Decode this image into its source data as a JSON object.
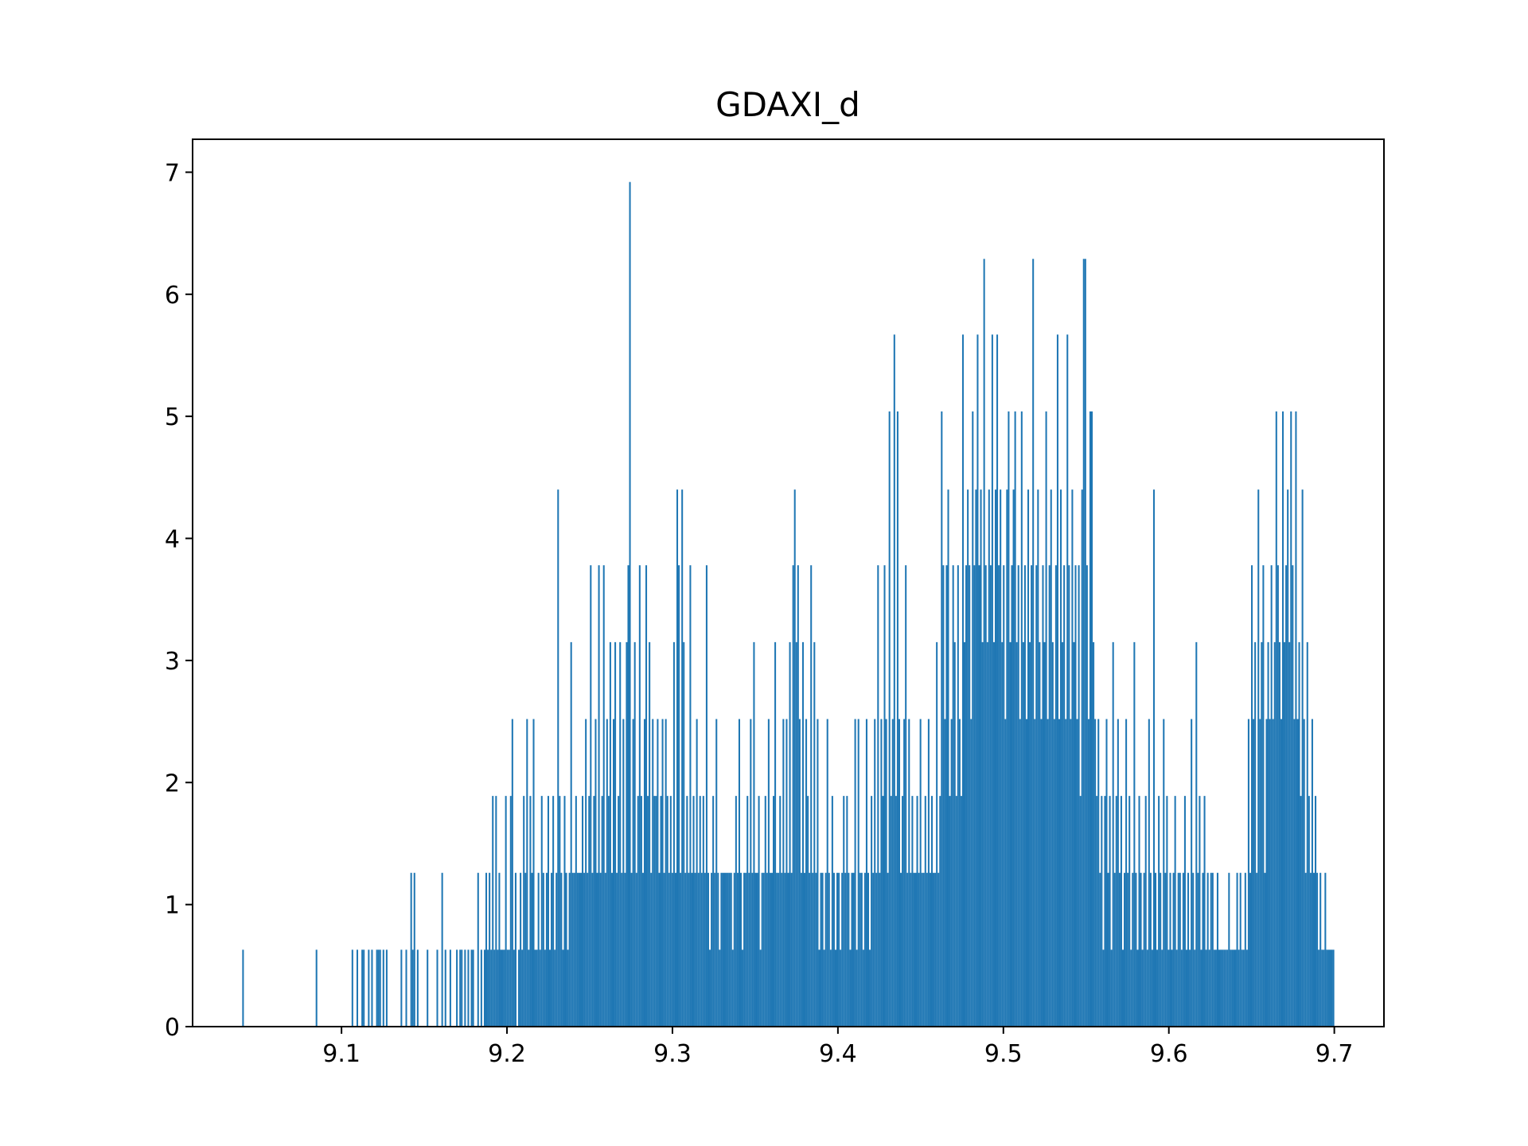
{
  "chart_data": {
    "type": "bar",
    "title": "GDAXI_d",
    "xlabel": "",
    "ylabel": "",
    "xlim": [
      9.01,
      9.73
    ],
    "ylim": [
      0,
      7.27
    ],
    "grid": false,
    "bar_color": "#1f77b4",
    "x_ticks": [
      9.1,
      9.2,
      9.3,
      9.4,
      9.5,
      9.6,
      9.7
    ],
    "x_tick_labels": [
      "9.1",
      "9.2",
      "9.3",
      "9.4",
      "9.5",
      "9.6",
      "9.7"
    ],
    "y_ticks": [
      0,
      1,
      2,
      3,
      4,
      5,
      6,
      7
    ],
    "y_tick_labels": [
      "0",
      "1",
      "2",
      "3",
      "4",
      "5",
      "6",
      "7"
    ],
    "bin_start": 9.04,
    "bin_end": 9.7,
    "bar_heights": [
      0.63,
      0,
      0,
      0,
      0,
      0,
      0,
      0,
      0,
      0,
      0,
      0,
      0,
      0,
      0,
      0,
      0,
      0,
      0,
      0,
      0,
      0,
      0,
      0,
      0,
      0,
      0,
      0,
      0,
      0,
      0,
      0,
      0,
      0,
      0,
      0,
      0,
      0,
      0,
      0,
      0,
      0,
      0,
      0,
      0,
      0.63,
      0,
      0,
      0,
      0,
      0,
      0,
      0,
      0,
      0,
      0,
      0,
      0,
      0,
      0,
      0,
      0,
      0,
      0,
      0,
      0,
      0,
      0.63,
      0,
      0,
      0.63,
      0,
      0,
      0.63,
      0.63,
      0,
      0,
      0.63,
      0,
      0.63,
      0,
      0,
      0.63,
      0.63,
      0.63,
      0,
      0.63,
      0,
      0.63,
      0,
      0,
      0,
      0,
      0,
      0,
      0,
      0,
      0.63,
      0,
      0,
      0.63,
      0,
      0,
      1.26,
      0.63,
      1.26,
      0,
      0.63,
      0,
      0,
      0,
      0,
      0,
      0.63,
      0,
      0,
      0,
      0,
      0,
      0.63,
      0,
      0,
      1.26,
      0,
      0.63,
      0,
      0,
      0.63,
      0,
      0,
      0,
      0.63,
      0,
      0.63,
      0.63,
      0,
      0.63,
      0,
      0.63,
      0,
      0.63,
      0.63,
      0,
      0,
      1.26,
      0,
      0.63,
      0,
      0.63,
      1.26,
      0.63,
      1.26,
      0.63,
      1.89,
      0.63,
      1.89,
      0.63,
      1.26,
      0.63,
      0.63,
      0.63,
      1.89,
      0.63,
      0.63,
      1.89,
      2.52,
      0.63,
      1.26,
      0,
      0.63,
      1.26,
      0.63,
      1.89,
      1.26,
      2.52,
      0.63,
      1.89,
      1.26,
      2.52,
      0.63,
      0.63,
      1.26,
      0.63,
      1.89,
      1.26,
      0.63,
      1.26,
      1.89,
      0.63,
      1.26,
      1.89,
      0.63,
      1.26,
      4.4,
      1.89,
      1.26,
      0.63,
      1.89,
      1.26,
      0.63,
      1.26,
      3.15,
      1.26,
      1.26,
      1.89,
      1.26,
      1.26,
      1.26,
      1.89,
      1.26,
      2.52,
      1.26,
      1.89,
      3.78,
      1.26,
      1.89,
      2.52,
      1.26,
      3.78,
      1.26,
      1.89,
      3.78,
      1.26,
      2.52,
      1.89,
      3.15,
      1.26,
      2.52,
      3.15,
      1.26,
      1.89,
      3.15,
      1.26,
      2.52,
      1.26,
      3.15,
      3.78,
      6.92,
      1.26,
      2.52,
      3.15,
      1.26,
      1.89,
      3.78,
      1.89,
      1.26,
      2.52,
      3.78,
      1.89,
      3.15,
      1.26,
      2.52,
      1.89,
      1.89,
      2.52,
      1.26,
      1.89,
      2.52,
      1.26,
      2.52,
      1.89,
      1.26,
      1.89,
      1.26,
      3.15,
      1.26,
      4.4,
      3.78,
      1.26,
      4.4,
      3.15,
      1.26,
      1.89,
      1.26,
      3.78,
      1.26,
      1.89,
      1.26,
      2.52,
      1.26,
      1.89,
      1.26,
      1.89,
      1.26,
      3.78,
      1.26,
      0.63,
      1.26,
      1.89,
      1.26,
      2.52,
      1.26,
      0.63,
      1.26,
      1.26,
      1.26,
      1.26,
      1.26,
      1.26,
      1.26,
      0.63,
      1.26,
      1.89,
      1.26,
      2.52,
      1.26,
      0.63,
      1.26,
      1.26,
      1.89,
      1.26,
      2.52,
      1.26,
      3.15,
      1.26,
      1.26,
      1.89,
      0.63,
      1.26,
      1.26,
      1.89,
      1.26,
      2.52,
      1.26,
      1.26,
      1.89,
      3.15,
      1.26,
      1.26,
      1.89,
      1.26,
      2.52,
      1.26,
      2.52,
      1.26,
      3.15,
      1.26,
      3.78,
      4.4,
      3.15,
      3.78,
      2.52,
      1.26,
      3.15,
      1.26,
      2.52,
      1.89,
      1.26,
      3.78,
      1.26,
      3.15,
      1.26,
      2.52,
      0.63,
      1.26,
      1.26,
      0.63,
      1.26,
      2.52,
      1.26,
      0.63,
      1.89,
      1.26,
      0.63,
      1.26,
      1.26,
      0.63,
      1.26,
      1.89,
      1.26,
      1.89,
      1.26,
      0.63,
      1.26,
      1.26,
      2.52,
      0.63,
      2.52,
      1.26,
      1.26,
      0.63,
      1.26,
      2.52,
      1.26,
      0.63,
      1.89,
      1.26,
      2.52,
      1.26,
      3.78,
      1.26,
      2.52,
      1.89,
      3.78,
      2.52,
      1.26,
      5.04,
      1.89,
      2.52,
      5.67,
      1.89,
      5.04,
      2.52,
      1.26,
      1.89,
      2.52,
      3.78,
      1.26,
      2.52,
      1.26,
      1.89,
      1.26,
      1.26,
      1.89,
      1.26,
      2.52,
      1.26,
      1.26,
      1.89,
      1.26,
      2.52,
      1.26,
      1.89,
      1.26,
      1.26,
      3.15,
      1.26,
      1.89,
      5.04,
      3.78,
      2.52,
      3.78,
      4.4,
      1.89,
      2.52,
      3.78,
      3.15,
      1.89,
      3.78,
      2.52,
      1.89,
      5.67,
      3.15,
      3.78,
      4.4,
      3.78,
      2.52,
      5.04,
      3.78,
      4.4,
      5.67,
      3.78,
      4.4,
      3.15,
      6.29,
      3.78,
      3.15,
      4.4,
      3.78,
      5.67,
      3.15,
      4.4,
      5.67,
      3.78,
      4.4,
      3.15,
      3.78,
      2.52,
      4.4,
      5.04,
      3.15,
      3.78,
      4.4,
      5.04,
      3.15,
      3.78,
      2.52,
      5.04,
      3.15,
      3.78,
      2.52,
      4.4,
      3.15,
      3.78,
      6.29,
      2.52,
      3.78,
      4.4,
      3.15,
      2.52,
      3.78,
      3.15,
      5.04,
      2.52,
      3.78,
      4.4,
      3.15,
      2.52,
      3.78,
      5.67,
      2.52,
      4.4,
      3.15,
      3.78,
      2.52,
      5.67,
      3.78,
      2.52,
      4.4,
      3.15,
      3.78,
      2.52,
      3.78,
      1.89,
      4.4,
      6.29,
      6.29,
      3.78,
      2.52,
      5.04,
      5.04,
      3.15,
      2.52,
      1.89,
      2.52,
      1.26,
      1.89,
      0.63,
      1.89,
      2.52,
      1.26,
      1.89,
      0.63,
      3.15,
      1.26,
      1.89,
      2.52,
      1.26,
      1.89,
      0.63,
      1.26,
      2.52,
      1.26,
      1.89,
      0.63,
      1.26,
      3.15,
      1.26,
      0.63,
      1.89,
      1.26,
      0.63,
      1.26,
      1.89,
      0.63,
      2.52,
      1.26,
      0.63,
      4.4,
      1.26,
      0.63,
      1.89,
      1.26,
      0.63,
      2.52,
      1.26,
      1.89,
      0.63,
      1.26,
      0.63,
      1.26,
      1.89,
      0.63,
      1.26,
      1.26,
      0.63,
      1.26,
      1.89,
      0.63,
      1.26,
      0.63,
      2.52,
      1.26,
      0.63,
      3.15,
      1.26,
      1.89,
      0.63,
      1.26,
      1.89,
      0.63,
      1.26,
      0.63,
      1.26,
      1.26,
      0.63,
      0.63,
      1.26,
      0.63,
      0.63,
      0.63,
      0.63,
      0.63,
      0.63,
      1.26,
      0.63,
      0.63,
      0.63,
      0.63,
      1.26,
      0.63,
      1.26,
      0.63,
      0.63,
      1.26,
      0.63,
      2.52,
      1.26,
      3.78,
      2.52,
      3.15,
      1.26,
      4.4,
      2.52,
      3.15,
      3.78,
      1.26,
      2.52,
      3.15,
      2.52,
      3.78,
      2.52,
      3.15,
      5.04,
      3.78,
      3.15,
      2.52,
      5.04,
      3.15,
      3.78,
      4.4,
      3.15,
      5.04,
      3.78,
      2.52,
      5.04,
      2.52,
      3.15,
      1.89,
      4.4,
      2.52,
      1.26,
      3.15,
      1.89,
      1.26,
      2.52,
      1.26,
      1.89,
      1.26,
      0.63,
      1.26,
      0.63,
      0.63,
      1.26,
      0.63,
      0.63,
      0.63,
      0.63,
      0.63
    ]
  }
}
